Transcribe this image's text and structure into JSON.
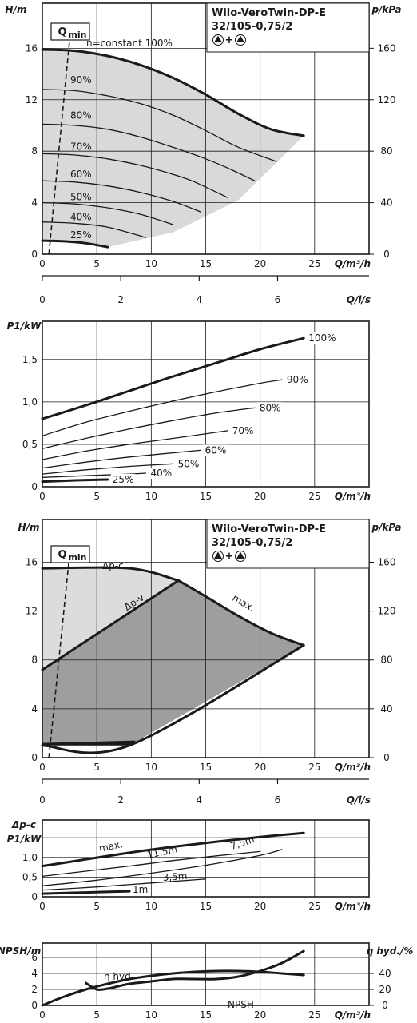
{
  "chart_data": [
    {
      "type": "line",
      "title": "Wilo-VeroTwin-DP-E",
      "subtitle": "32/105-0,75/2",
      "symbol_text": "+",
      "ylabel": "H/m",
      "ylabel_right": "p/kPa",
      "xlabel": "Q/m³/h",
      "xlabel_secondary": "Q/l/s",
      "xlim": [
        0,
        30
      ],
      "ylim": [
        0,
        19.5
      ],
      "yticks": [
        0,
        4,
        8,
        12,
        16
      ],
      "yticks_right": [
        0,
        40,
        80,
        120,
        160
      ],
      "xticks": [
        0,
        5,
        10,
        15,
        20,
        25
      ],
      "xticks_secondary": [
        0,
        2,
        4,
        6
      ],
      "qmin_label": "Q",
      "qmin_sub": "min",
      "grid": true,
      "series": [
        {
          "name": "n=constant 100%",
          "x": [
            0,
            3,
            6,
            9,
            12,
            15,
            18,
            21,
            24
          ],
          "y": [
            15.9,
            15.8,
            15.4,
            14.7,
            13.7,
            12.4,
            10.9,
            9.7,
            9.2
          ]
        },
        {
          "name": "90%",
          "x": [
            0,
            3,
            6,
            9,
            12,
            15,
            18,
            21.5
          ],
          "y": [
            12.8,
            12.7,
            12.3,
            11.7,
            10.8,
            9.6,
            8.3,
            7.2
          ]
        },
        {
          "name": "80%",
          "x": [
            0,
            3,
            6,
            9,
            12,
            15,
            17,
            19.5
          ],
          "y": [
            10.1,
            10.0,
            9.7,
            9.1,
            8.3,
            7.4,
            6.7,
            5.7
          ]
        },
        {
          "name": "70%",
          "x": [
            0,
            3,
            6,
            9,
            12,
            14,
            17
          ],
          "y": [
            7.8,
            7.7,
            7.4,
            6.9,
            6.2,
            5.6,
            4.4
          ]
        },
        {
          "name": "60%",
          "x": [
            0,
            3,
            6,
            9,
            12,
            14.5
          ],
          "y": [
            5.7,
            5.6,
            5.3,
            4.8,
            4.1,
            3.3
          ]
        },
        {
          "name": "50%",
          "x": [
            0,
            3,
            6,
            9,
            12
          ],
          "y": [
            4.0,
            3.9,
            3.6,
            3.1,
            2.3
          ]
        },
        {
          "name": "40%",
          "x": [
            0,
            3,
            6,
            9.5
          ],
          "y": [
            2.5,
            2.4,
            2.1,
            1.3
          ]
        },
        {
          "name": "25%",
          "x": [
            0,
            2,
            4,
            6
          ],
          "y": [
            1.05,
            1.0,
            0.85,
            0.55
          ]
        }
      ],
      "qmin_line": {
        "x": [
          0.6,
          2.6
        ],
        "y": [
          0,
          17.5
        ]
      }
    },
    {
      "type": "line",
      "ylabel": "P1/kW",
      "xlabel": "Q/m³/h",
      "xlim": [
        0,
        30
      ],
      "ylim": [
        0,
        1.95
      ],
      "yticks": [
        0,
        0.5,
        1.0,
        1.5
      ],
      "ytick_labels": [
        "0",
        "0,5",
        "1,0",
        "1,5"
      ],
      "xticks": [
        0,
        5,
        10,
        15,
        20,
        25
      ],
      "grid": true,
      "series": [
        {
          "name": "100%",
          "x": [
            0,
            4,
            8,
            12,
            16,
            20,
            24
          ],
          "y": [
            0.8,
            0.96,
            1.13,
            1.3,
            1.46,
            1.62,
            1.75
          ]
        },
        {
          "name": "90%",
          "x": [
            0,
            4,
            8,
            12,
            16,
            20,
            22
          ],
          "y": [
            0.6,
            0.76,
            0.89,
            1.01,
            1.12,
            1.22,
            1.26
          ]
        },
        {
          "name": "80%",
          "x": [
            0,
            4,
            8,
            12,
            16,
            19.5
          ],
          "y": [
            0.45,
            0.57,
            0.68,
            0.78,
            0.87,
            0.93
          ]
        },
        {
          "name": "70%",
          "x": [
            0,
            4,
            8,
            12,
            17
          ],
          "y": [
            0.32,
            0.42,
            0.5,
            0.57,
            0.66
          ]
        },
        {
          "name": "60%",
          "x": [
            0,
            4,
            8,
            14.5
          ],
          "y": [
            0.22,
            0.29,
            0.35,
            0.43
          ]
        },
        {
          "name": "50%",
          "x": [
            0,
            4,
            8,
            12
          ],
          "y": [
            0.15,
            0.2,
            0.24,
            0.27
          ]
        },
        {
          "name": "40%",
          "x": [
            0,
            4,
            8,
            9.5
          ],
          "y": [
            0.11,
            0.13,
            0.15,
            0.16
          ]
        },
        {
          "name": "25%",
          "x": [
            0,
            3,
            6
          ],
          "y": [
            0.06,
            0.075,
            0.085
          ]
        }
      ]
    },
    {
      "type": "area",
      "title": "Wilo-VeroTwin-DP-E",
      "subtitle": "32/105-0,75/2",
      "symbol_text": "+",
      "ylabel": "H/m",
      "ylabel_right": "p/kPa",
      "xlabel": "Q/m³/h",
      "xlabel_secondary": "Q/l/s",
      "xlim": [
        0,
        30
      ],
      "ylim": [
        0,
        19.5
      ],
      "yticks": [
        0,
        4,
        8,
        12,
        16
      ],
      "yticks_right": [
        0,
        40,
        80,
        120,
        160
      ],
      "xticks": [
        0,
        5,
        10,
        15,
        20,
        25
      ],
      "xticks_secondary": [
        0,
        2,
        4,
        6
      ],
      "qmin_label": "Q",
      "qmin_sub": "min",
      "grid": true,
      "labels": {
        "dpc": "Δp-c",
        "dpv": "Δp-v",
        "max": "max."
      },
      "series": [
        {
          "name": "max.",
          "x": [
            12.5,
            15,
            18,
            21,
            24
          ],
          "y": [
            14.5,
            13.2,
            11.6,
            10.2,
            9.2
          ]
        },
        {
          "name": "Δp-c",
          "x": [
            0,
            8,
            12.5
          ],
          "y": [
            15.5,
            15.5,
            14.5
          ]
        },
        {
          "name": "Δp-v",
          "x": [
            0,
            12.5
          ],
          "y": [
            7.2,
            14.5
          ]
        },
        {
          "name": "min",
          "x": [
            0,
            8,
            24
          ],
          "y": [
            1.0,
            1.0,
            9.2
          ]
        }
      ],
      "qmin_line": {
        "x": [
          0.6,
          2.6
        ],
        "y": [
          0,
          17.5
        ]
      }
    },
    {
      "type": "line",
      "ylabel": "Δp-c",
      "ylabel_line2": "P1/kW",
      "xlabel": "Q/m³/h",
      "xlim": [
        0,
        30
      ],
      "ylim": [
        0,
        1.95
      ],
      "yticks": [
        0,
        0.5,
        1.0
      ],
      "ytick_labels": [
        "0",
        "0,5",
        "1,0"
      ],
      "xticks": [
        0,
        5,
        10,
        15,
        20,
        25
      ],
      "grid": true,
      "series": [
        {
          "name": "max.",
          "x": [
            0,
            4,
            8,
            12,
            16,
            20,
            24
          ],
          "y": [
            0.78,
            0.95,
            1.12,
            1.27,
            1.4,
            1.52,
            1.62
          ]
        },
        {
          "name": "11,5m",
          "x": [
            0,
            4,
            8,
            12,
            16,
            20
          ],
          "y": [
            0.52,
            0.65,
            0.78,
            0.92,
            1.04,
            1.15
          ]
        },
        {
          "name": "7,5m",
          "x": [
            0,
            5,
            10,
            15,
            20,
            22
          ],
          "y": [
            0.28,
            0.42,
            0.6,
            0.8,
            1.05,
            1.2
          ]
        },
        {
          "name": "3,5m",
          "x": [
            0,
            5,
            10,
            15
          ],
          "y": [
            0.17,
            0.25,
            0.35,
            0.45
          ]
        },
        {
          "name": "1m",
          "x": [
            0,
            4,
            8
          ],
          "y": [
            0.08,
            0.11,
            0.14
          ]
        }
      ]
    },
    {
      "type": "line",
      "ylabel": "NPSH/m",
      "ylabel_right": "η hyd./%",
      "xlabel": "Q/m³/h",
      "xlim": [
        0,
        30
      ],
      "ylim": [
        0,
        7.8
      ],
      "yticks": [
        0,
        2,
        4,
        6
      ],
      "yticks_right": [
        0,
        20,
        40
      ],
      "xticks": [
        0,
        5,
        10,
        15,
        20,
        25
      ],
      "grid": true,
      "series": [
        {
          "name": "η hyd.",
          "x": [
            0,
            2,
            4,
            6,
            8,
            10,
            12,
            14,
            16,
            18,
            20,
            22,
            24
          ],
          "y": [
            0,
            11,
            20,
            27,
            33,
            37,
            40,
            42,
            43,
            43,
            42,
            40,
            38
          ]
        },
        {
          "name": "NPSH",
          "x": [
            4,
            5,
            6,
            7,
            8,
            10,
            12,
            14,
            16,
            18,
            20,
            22,
            24
          ],
          "y": [
            2.8,
            2.0,
            2.1,
            2.4,
            2.7,
            3.0,
            3.3,
            3.3,
            3.3,
            3.6,
            4.3,
            5.3,
            6.8
          ]
        }
      ]
    }
  ]
}
